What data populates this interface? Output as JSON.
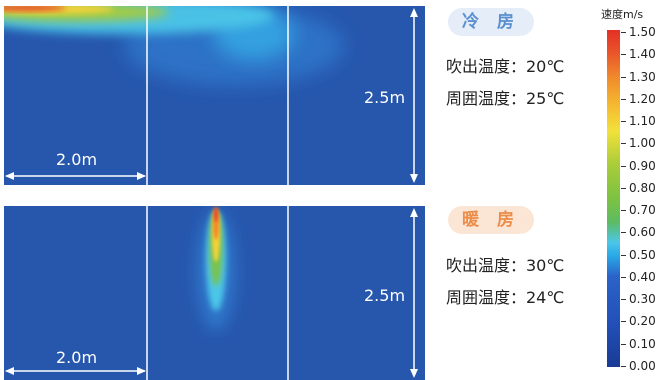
{
  "cooling": {
    "title": "冷 房",
    "outlet_temp": "吹出温度：20℃",
    "ambient_temp": "周囲温度：25℃",
    "width_label": "2.0m",
    "height_label": "2.5m"
  },
  "heating": {
    "title": "暖 房",
    "outlet_temp": "吹出温度：30℃",
    "ambient_temp": "周囲温度：24℃",
    "width_label": "2.0m",
    "height_label": "2.5m"
  },
  "scale": {
    "title": "速度m/s",
    "ticks": [
      "1.50",
      "1.40",
      "1.30",
      "1.20",
      "1.10",
      "1.00",
      "0.90",
      "0.80",
      "0.70",
      "0.60",
      "0.50",
      "0.40",
      "0.30",
      "0.20",
      "0.10",
      "0.00"
    ]
  }
}
